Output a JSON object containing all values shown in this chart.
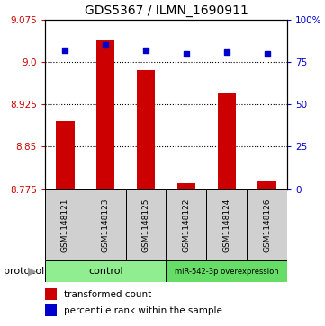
{
  "title": "GDS5367 / ILMN_1690911",
  "samples": [
    "GSM1148121",
    "GSM1148123",
    "GSM1148125",
    "GSM1148122",
    "GSM1148124",
    "GSM1148126"
  ],
  "transformed_counts": [
    8.895,
    9.04,
    8.985,
    8.785,
    8.945,
    8.79
  ],
  "percentile_ranks": [
    82,
    85,
    82,
    80,
    81,
    80
  ],
  "ylim_left": [
    8.775,
    9.075
  ],
  "ylim_right": [
    0,
    100
  ],
  "yticks_left": [
    8.775,
    8.85,
    8.925,
    9.0,
    9.075
  ],
  "yticks_right": [
    0,
    25,
    50,
    75,
    100
  ],
  "ytick_labels_right": [
    "0",
    "25",
    "50",
    "75",
    "100%"
  ],
  "bar_color": "#cc0000",
  "dot_color": "#0000cc",
  "title_fontsize": 10,
  "bar_width": 0.45,
  "dot_size": 5,
  "sample_box_color": "#d0d0d0",
  "control_color": "#90ee90",
  "mir_color": "#66dd66",
  "legend_items": [
    {
      "label": "transformed count",
      "color": "#cc0000"
    },
    {
      "label": "percentile rank within the sample",
      "color": "#0000cc"
    }
  ]
}
